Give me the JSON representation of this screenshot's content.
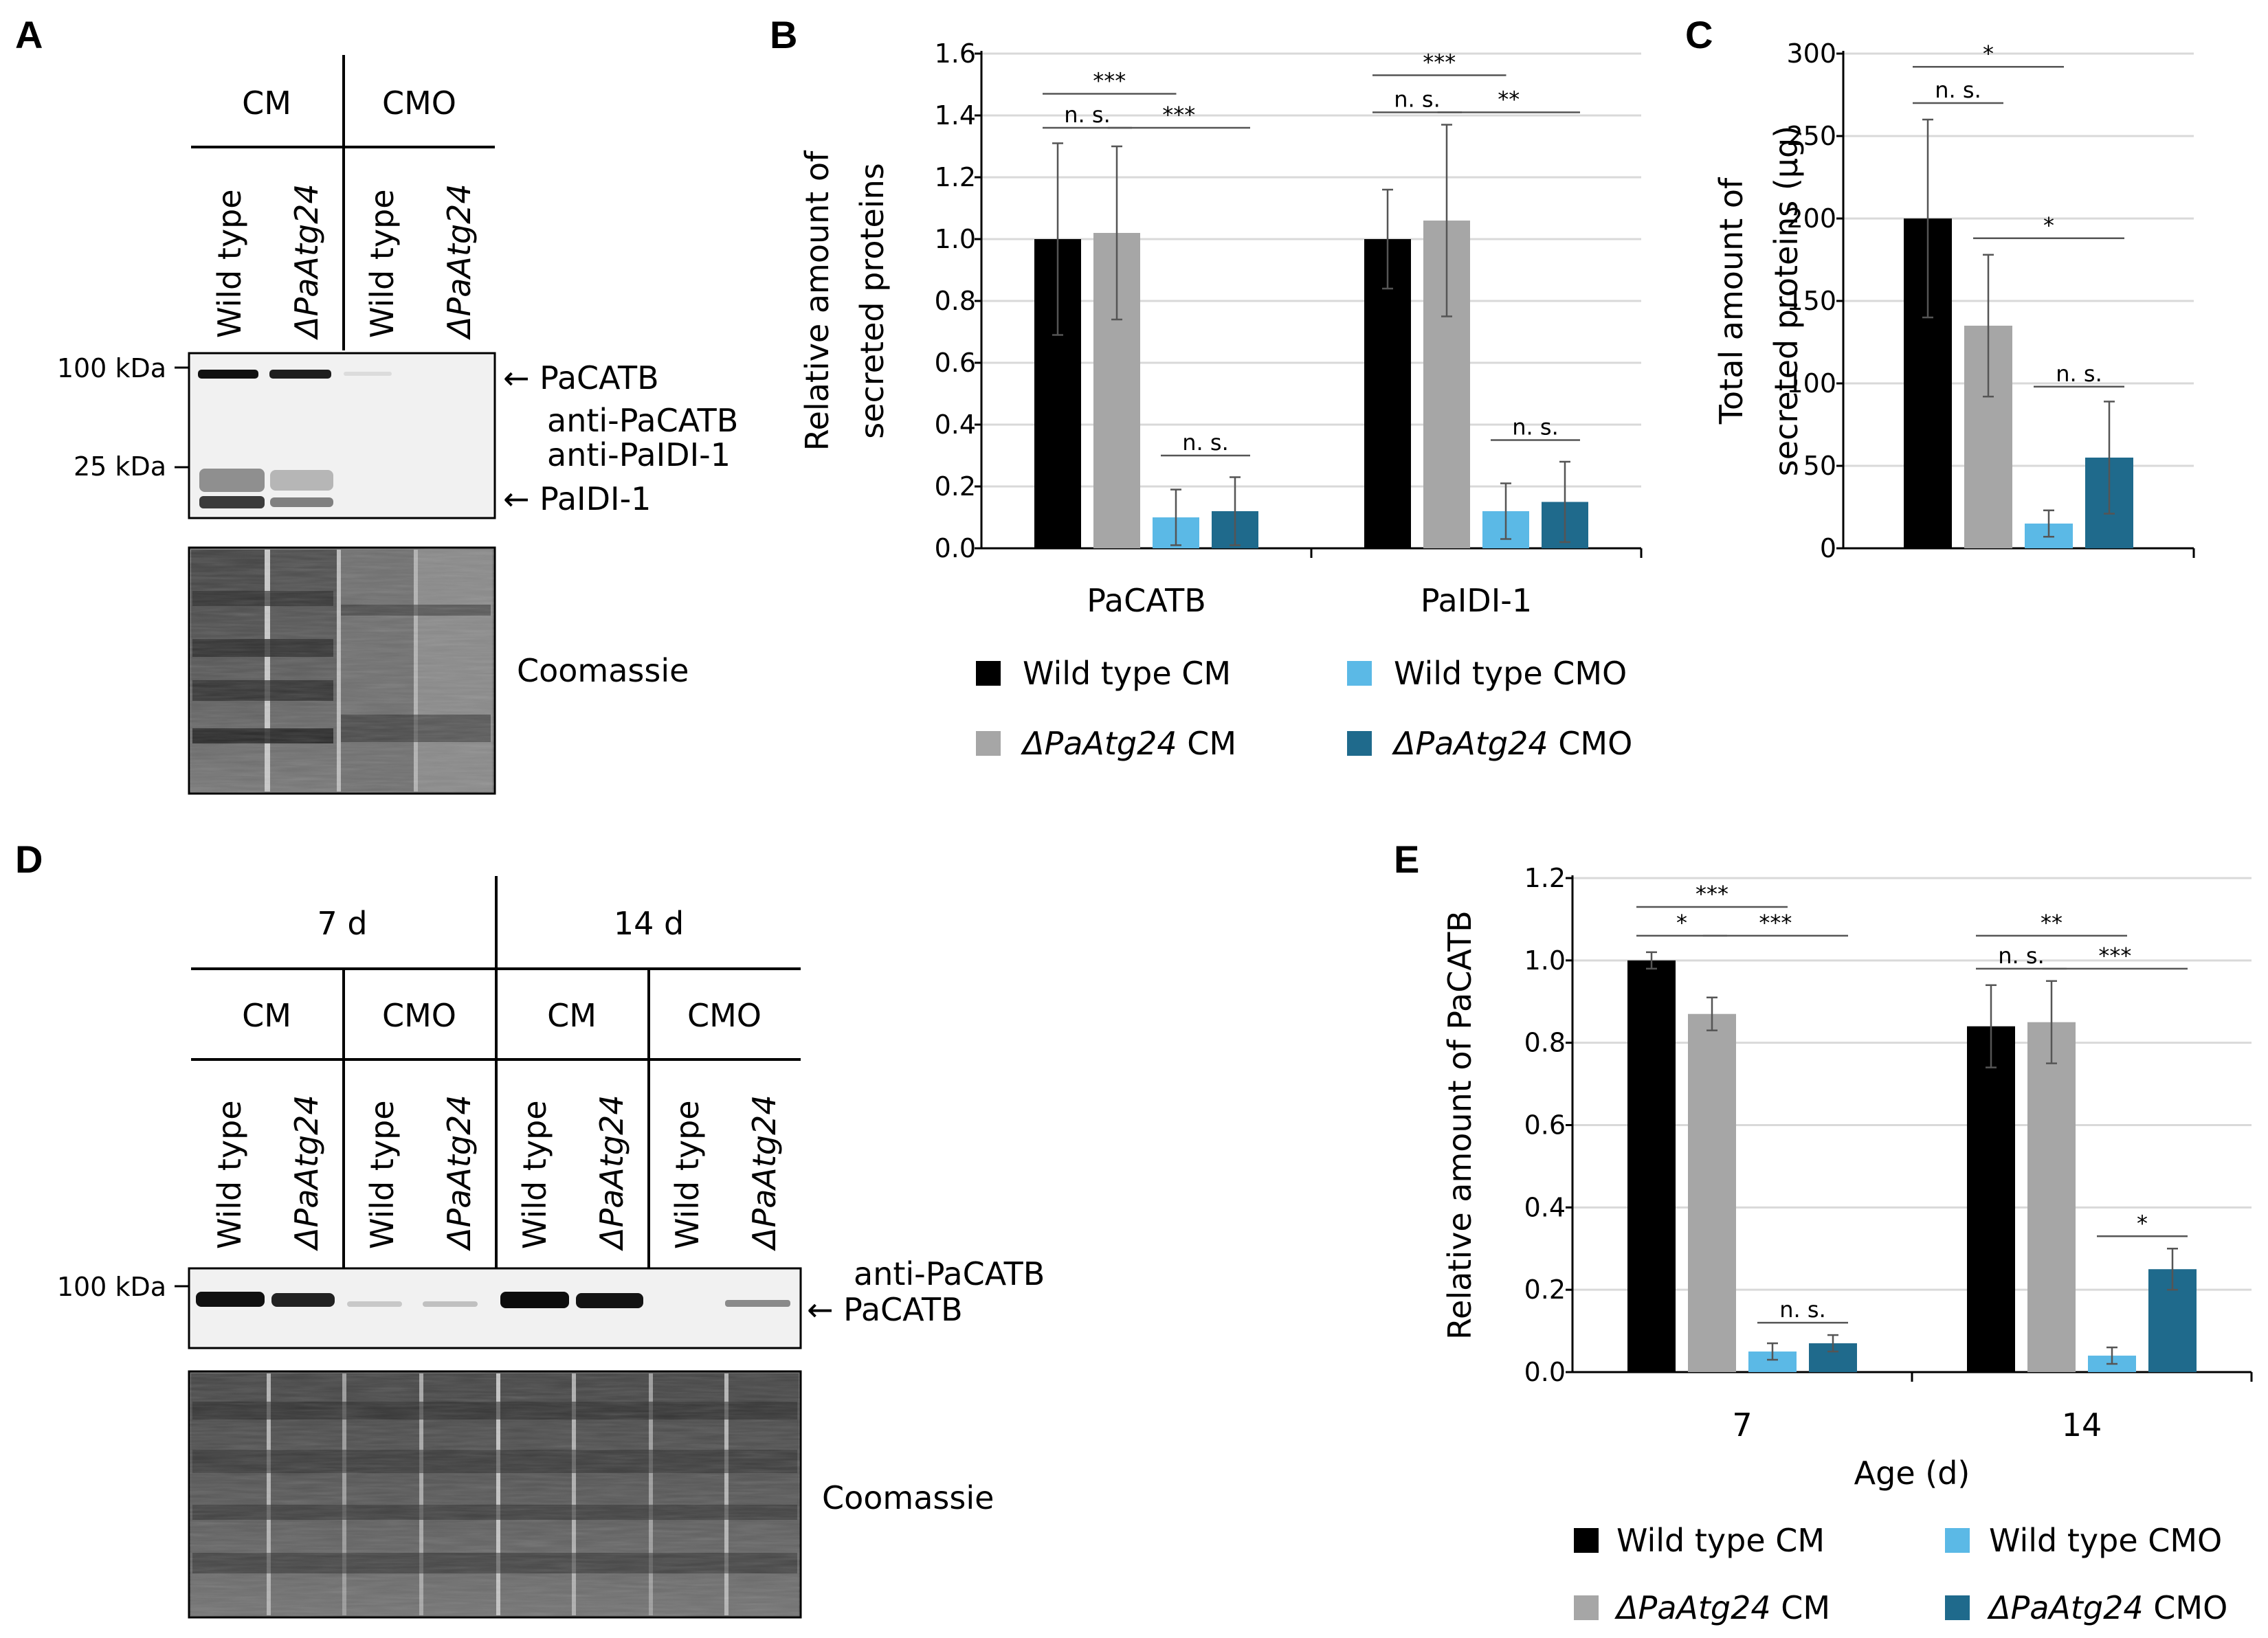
{
  "colors": {
    "wt_cm": "#000000",
    "d_cm": "#a6a6a6",
    "wt_cmo": "#5bb9e6",
    "d_cmo": "#1f6a8c"
  },
  "panel_labels": [
    "A",
    "B",
    "C",
    "D",
    "E"
  ],
  "blot_a": {
    "groups": [
      "CM",
      "CMO"
    ],
    "lanes": [
      "Wild type",
      "ΔPaAtg24",
      "Wild type",
      "ΔPaAtg24"
    ],
    "markers": [
      "100 kDa",
      "25 kDa"
    ],
    "band_labels": [
      "← PaCATB",
      "anti-PaCATB",
      "anti-PaIDI-1",
      "← PaIDI-1"
    ],
    "stain_label": "Coomassie"
  },
  "blot_d": {
    "ages": [
      "7 d",
      "14 d"
    ],
    "groups": [
      "CM",
      "CMO",
      "CM",
      "CMO"
    ],
    "lanes": [
      "Wild type",
      "ΔPaAtg24",
      "Wild type",
      "ΔPaAtg24",
      "Wild type",
      "ΔPaAtg24",
      "Wild type",
      "ΔPaAtg24"
    ],
    "markers": [
      "100 kDa"
    ],
    "band_labels": [
      "anti-PaCATB",
      "← PaCATB"
    ],
    "stain_label": "Coomassie"
  },
  "legend": [
    {
      "italic": "",
      "text": "Wild type CM"
    },
    {
      "italic": "ΔPaAtg24",
      "text": " CM"
    },
    {
      "italic": "",
      "text": "Wild type CMO"
    },
    {
      "italic": "ΔPaAtg24",
      "text": " CMO"
    }
  ],
  "chart_data": [
    {
      "panel": "B",
      "type": "bar",
      "ylabel": [
        "Relative amount of",
        "secreted proteins"
      ],
      "ylim": [
        0,
        1.6
      ],
      "yticks": [
        "0.0",
        "0.2",
        "0.4",
        "0.6",
        "0.8",
        "1.0",
        "1.2",
        "1.4",
        "1.6"
      ],
      "categories": [
        "PaCATB",
        "PaIDI-1"
      ],
      "series": [
        {
          "values": [
            1.0,
            1.0
          ],
          "errors": [
            0.31,
            0.16
          ]
        },
        {
          "values": [
            1.02,
            1.06
          ],
          "errors": [
            0.28,
            0.31
          ]
        },
        {
          "values": [
            0.1,
            0.12
          ],
          "errors": [
            0.09,
            0.09
          ]
        },
        {
          "values": [
            0.12,
            0.15
          ],
          "errors": [
            0.11,
            0.13
          ]
        }
      ],
      "significance": [
        {
          "label": "***",
          "category": 0,
          "from": 0,
          "to": 1.75,
          "y": 1.47
        },
        {
          "label": "n. s.",
          "category": 0,
          "from": 0,
          "to": 1,
          "y": 1.36
        },
        {
          "label": "***",
          "category": 0,
          "from": 1.1,
          "to": 3,
          "y": 1.36
        },
        {
          "label": "n. s.",
          "category": 0,
          "from": 2,
          "to": 3,
          "y": 0.3
        },
        {
          "label": "***",
          "category": 1,
          "from": 0,
          "to": 1.75,
          "y": 1.53
        },
        {
          "label": "n. s.",
          "category": 1,
          "from": 0,
          "to": 1,
          "y": 1.41
        },
        {
          "label": "**",
          "category": 1,
          "from": 1.1,
          "to": 3,
          "y": 1.41
        },
        {
          "label": "n. s.",
          "category": 1,
          "from": 2,
          "to": 3,
          "y": 0.35
        }
      ]
    },
    {
      "panel": "C",
      "type": "bar",
      "ylabel": [
        "Total amount of",
        "secreted proteins (µg)"
      ],
      "ylim": [
        0,
        300
      ],
      "yticks": [
        "0",
        "50",
        "100",
        "150",
        "200",
        "250",
        "300"
      ],
      "categories": [
        ""
      ],
      "series": [
        {
          "values": [
            200
          ],
          "errors": [
            60
          ]
        },
        {
          "values": [
            135
          ],
          "errors": [
            43
          ]
        },
        {
          "values": [
            15
          ],
          "errors": [
            8
          ]
        },
        {
          "values": [
            55
          ],
          "errors": [
            34
          ]
        }
      ],
      "significance": [
        {
          "label": "*",
          "category": 0,
          "from": 0,
          "to": 2,
          "y": 292
        },
        {
          "label": "n. s.",
          "category": 0,
          "from": 0,
          "to": 1,
          "y": 270
        },
        {
          "label": "*",
          "category": 0,
          "from": 1,
          "to": 3,
          "y": 188
        },
        {
          "label": "n. s.",
          "category": 0,
          "from": 2,
          "to": 3,
          "y": 98
        }
      ]
    },
    {
      "panel": "E",
      "type": "bar",
      "xlabel": "Age (d)",
      "ylabel": [
        "Relative amount of PaCATB"
      ],
      "ylim": [
        0,
        1.2
      ],
      "yticks": [
        "0.0",
        "0.2",
        "0.4",
        "0.6",
        "0.8",
        "1.0",
        "1.2"
      ],
      "categories": [
        "7",
        "14"
      ],
      "series": [
        {
          "values": [
            1.0,
            0.84
          ],
          "errors": [
            0.02,
            0.1
          ]
        },
        {
          "values": [
            0.87,
            0.85
          ],
          "errors": [
            0.04,
            0.1
          ]
        },
        {
          "values": [
            0.05,
            0.04
          ],
          "errors": [
            0.02,
            0.02
          ]
        },
        {
          "values": [
            0.07,
            0.25
          ],
          "errors": [
            0.02,
            0.05
          ]
        }
      ],
      "significance": [
        {
          "label": "***",
          "category": 0,
          "from": 0,
          "to": 2,
          "y": 1.13
        },
        {
          "label": "*",
          "category": 0,
          "from": 0,
          "to": 1,
          "y": 1.06
        },
        {
          "label": "***",
          "category": 0,
          "from": 1.1,
          "to": 3,
          "y": 1.06
        },
        {
          "label": "n. s.",
          "category": 0,
          "from": 2,
          "to": 3,
          "y": 0.12
        },
        {
          "label": "**",
          "category": 1,
          "from": 0,
          "to": 2,
          "y": 1.06
        },
        {
          "label": "n. s.",
          "category": 1,
          "from": 0,
          "to": 1,
          "y": 0.98
        },
        {
          "label": "***",
          "category": 1,
          "from": 1.1,
          "to": 3,
          "y": 0.98
        },
        {
          "label": "*",
          "category": 1,
          "from": 2,
          "to": 3,
          "y": 0.33
        }
      ]
    }
  ]
}
